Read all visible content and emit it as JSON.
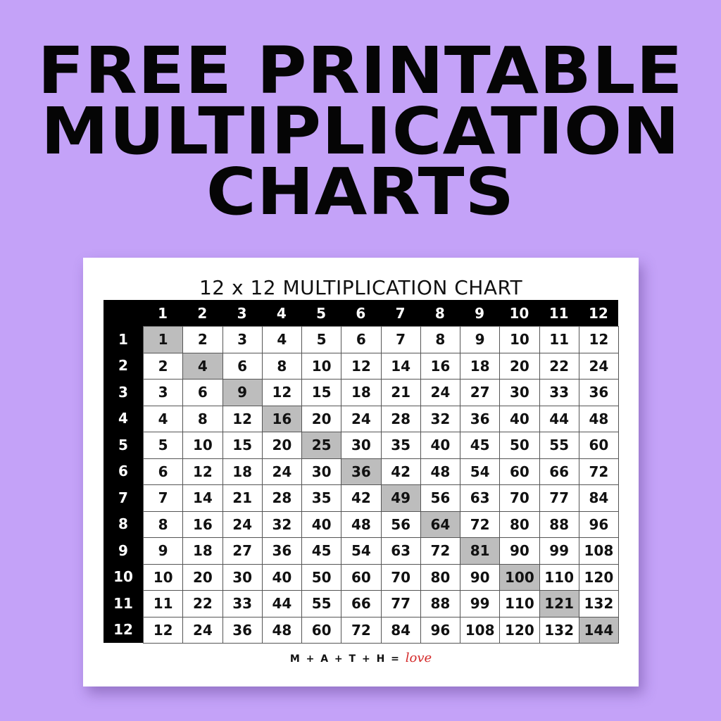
{
  "headline": [
    "FREE PRINTABLE",
    "MULTIPLICATION",
    "CHARTS"
  ],
  "chart_title": "12 x 12 MULTIPLICATION CHART",
  "column_headers": [
    "1",
    "2",
    "3",
    "4",
    "5",
    "6",
    "7",
    "8",
    "9",
    "10",
    "11",
    "12"
  ],
  "row_headers": [
    "1",
    "2",
    "3",
    "4",
    "5",
    "6",
    "7",
    "8",
    "9",
    "10",
    "11",
    "12"
  ],
  "rows": [
    [
      1,
      2,
      3,
      4,
      5,
      6,
      7,
      8,
      9,
      10,
      11,
      12
    ],
    [
      2,
      4,
      6,
      8,
      10,
      12,
      14,
      16,
      18,
      20,
      22,
      24
    ],
    [
      3,
      6,
      9,
      12,
      15,
      18,
      21,
      24,
      27,
      30,
      33,
      36
    ],
    [
      4,
      8,
      12,
      16,
      20,
      24,
      28,
      32,
      36,
      40,
      44,
      48
    ],
    [
      5,
      10,
      15,
      20,
      25,
      30,
      35,
      40,
      45,
      50,
      55,
      60
    ],
    [
      6,
      12,
      18,
      24,
      30,
      36,
      42,
      48,
      54,
      60,
      66,
      72
    ],
    [
      7,
      14,
      21,
      28,
      35,
      42,
      49,
      56,
      63,
      70,
      77,
      84
    ],
    [
      8,
      16,
      24,
      32,
      40,
      48,
      56,
      64,
      72,
      80,
      88,
      96
    ],
    [
      9,
      18,
      27,
      36,
      45,
      54,
      63,
      72,
      81,
      90,
      99,
      108
    ],
    [
      10,
      20,
      30,
      40,
      50,
      60,
      70,
      80,
      90,
      100,
      110,
      120
    ],
    [
      11,
      22,
      33,
      44,
      55,
      66,
      77,
      88,
      99,
      110,
      121,
      132
    ],
    [
      12,
      24,
      36,
      48,
      60,
      72,
      84,
      96,
      108,
      120,
      132,
      144
    ]
  ],
  "footer": {
    "text": "M + A + T + H = ",
    "logo_word": "love"
  },
  "colors": {
    "background": "#c4a2f8",
    "header": "#000000",
    "diagonal_highlight": "#bdbdbd",
    "logo_accent": "#d42a2a"
  }
}
